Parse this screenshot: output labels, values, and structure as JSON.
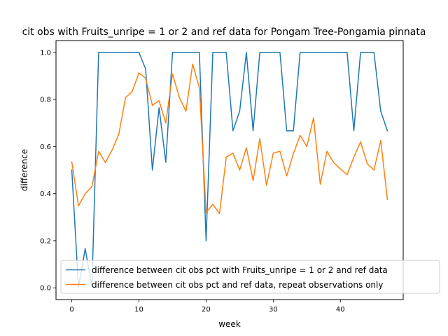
{
  "chart_data": {
    "type": "line",
    "title": "cit obs with Fruits_unripe = 1 or 2 and ref data for Pongam Tree-Pongamia pinnata",
    "xlabel": "week",
    "ylabel": "difference",
    "xlim": [
      -2.35,
      49.35
    ],
    "ylim": [
      -0.05,
      1.05
    ],
    "x_ticks": [
      0,
      10,
      20,
      30,
      40
    ],
    "y_ticks": [
      0.0,
      0.2,
      0.4,
      0.6,
      0.8,
      1.0
    ],
    "y_tick_labels": [
      "0.0",
      "0.2",
      "0.4",
      "0.6",
      "0.8",
      "1.0"
    ],
    "grid": false,
    "legend_position": "lower right",
    "x": [
      0,
      1,
      2,
      3,
      4,
      5,
      6,
      7,
      8,
      9,
      10,
      11,
      12,
      13,
      14,
      15,
      16,
      17,
      18,
      19,
      20,
      21,
      22,
      23,
      24,
      25,
      26,
      27,
      28,
      29,
      30,
      31,
      32,
      33,
      34,
      35,
      36,
      37,
      38,
      39,
      40,
      41,
      42,
      43,
      44,
      45,
      46,
      47
    ],
    "series": [
      {
        "name": "difference between cit obs pct with Fruits_unripe = 1 or 2 and ref data",
        "color": "#1f77b4",
        "values": [
          0.5,
          0.0,
          0.167,
          0.0,
          1.0,
          1.0,
          1.0,
          1.0,
          1.0,
          1.0,
          1.0,
          0.929,
          0.5,
          0.765,
          0.533,
          1.0,
          1.0,
          1.0,
          1.0,
          1.0,
          0.2,
          1.0,
          1.0,
          1.0,
          0.667,
          0.75,
          1.0,
          0.667,
          1.0,
          1.0,
          1.0,
          1.0,
          0.667,
          0.667,
          1.0,
          1.0,
          1.0,
          1.0,
          1.0,
          1.0,
          1.0,
          1.0,
          0.667,
          1.0,
          1.0,
          1.0,
          0.75,
          0.667
        ]
      },
      {
        "name": "difference between cit obs pct and ref data, repeat observations only",
        "color": "#ff7f0e",
        "values": [
          0.535,
          0.348,
          0.4,
          0.43,
          0.58,
          0.532,
          0.585,
          0.652,
          0.808,
          0.834,
          0.913,
          0.89,
          0.775,
          0.795,
          0.7,
          0.908,
          0.81,
          0.75,
          0.95,
          0.85,
          0.32,
          0.355,
          0.315,
          0.555,
          0.572,
          0.5,
          0.595,
          0.455,
          0.634,
          0.435,
          0.572,
          0.58,
          0.475,
          0.57,
          0.648,
          0.6,
          0.723,
          0.44,
          0.58,
          0.532,
          0.505,
          0.48,
          0.555,
          0.62,
          0.527,
          0.5,
          0.626,
          0.375
        ]
      }
    ]
  }
}
